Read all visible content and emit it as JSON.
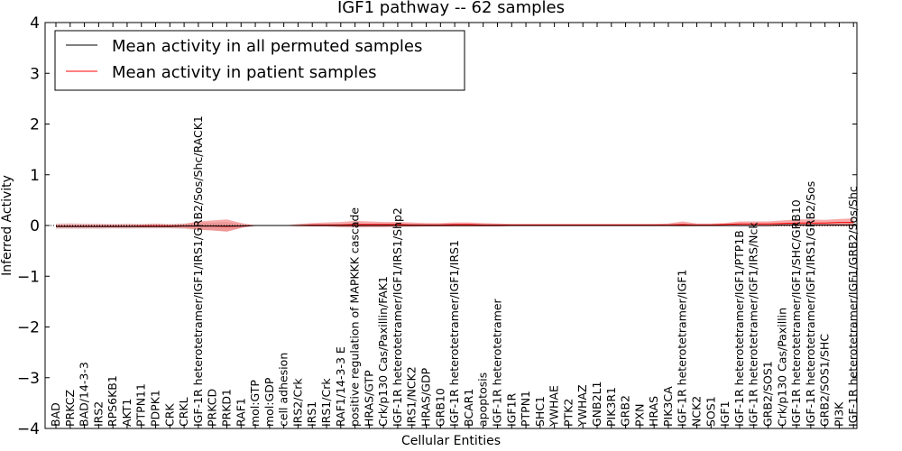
{
  "chart_data": {
    "type": "line",
    "title": "IGF1 pathway -- 62 samples",
    "xlabel": "Cellular Entities",
    "ylabel": "Inferred Activity",
    "ylim": [
      -4,
      4
    ],
    "yticks": [
      "−4",
      "−3",
      "−2",
      "−1",
      "0",
      "1",
      "2",
      "3",
      "4"
    ],
    "ytick_values": [
      -4,
      -3,
      -2,
      -1,
      0,
      1,
      2,
      3,
      4
    ],
    "categories": [
      "BAD",
      "PRKCZ",
      "BAD/14-3-3",
      "IRS2",
      "RPS6KB1",
      "AKT1",
      "PTPN11",
      "PDPK1",
      "CRK",
      "CRKL",
      "IGF-1R heterotetramer/IGF1/IRS1/GRB2/Sos/Shc/RACK1",
      "PRKCD",
      "PRKD1",
      "RAF1",
      "mol:GTP",
      "mol:GDP",
      "cell adhesion",
      "IRS2/Crk",
      "IRS1",
      "IRS1/Crk",
      "RAF1/14-3-3 E",
      "positive regulation of MAPKKK cascade",
      "HRAS/GTP",
      "Crk/p130 Cas/Paxillin/FAK1",
      "IGF-1R heterotetramer/IGF1/IRS1/Shp2",
      "IRS1/NCK2",
      "HRAS/GDP",
      "GRB10",
      "IGF-1R heterotetramer/IGF1/IRS1",
      "BCAR1",
      "apoptosis",
      "IGF-1R heterotetramer",
      "IGF1R",
      "PTPN1",
      "SHC1",
      "YWHAE",
      "PTK2",
      "YWHAZ",
      "GNB2L1",
      "PIK3R1",
      "GRB2",
      "PXN",
      "HRAS",
      "PIK3CA",
      "IGF-1R heterotetramer/IGF1",
      "NCK2",
      "SOS1",
      "IGF1",
      "IGF-1R heterotetramer/IGF1/PTP1B",
      "IGF-1R heterotetramer/IGF1/IRS/Nck",
      "GRB2/SOS1",
      "Crk/p130 Cas/Paxillin",
      "IGF-1R heterotetramer/IGF1/SHC/GRB10",
      "IGF-1R heterotetramer/IGF1/IRS1/GRB2/Sos",
      "GRB2/SOS1/SHC",
      "PI3K",
      "IGF-1R heterotetramer/IGF1/GRB2/Sos/Shc"
    ],
    "series": [
      {
        "name": "Mean activity in all permuted samples",
        "color": "#000000",
        "values": [
          -0.02,
          -0.02,
          -0.02,
          -0.02,
          -0.02,
          -0.02,
          -0.02,
          -0.02,
          -0.02,
          -0.01,
          -0.01,
          -0.01,
          -0.01,
          -0.01,
          0.0,
          0.0,
          0.0,
          0.0,
          0.0,
          0.0,
          0.0,
          0.0,
          0.0,
          0.0,
          0.0,
          0.0,
          0.0,
          0.0,
          0.0,
          0.0,
          0.0,
          0.0,
          0.0,
          0.0,
          0.0,
          0.0,
          0.0,
          0.0,
          0.0,
          0.0,
          0.0,
          0.0,
          0.0,
          0.0,
          0.0,
          0.0,
          0.0,
          0.0,
          0.0,
          0.0,
          0.0,
          0.01,
          0.01,
          0.01,
          0.01,
          0.01,
          0.01
        ],
        "band_upper": [
          0.04,
          0.05,
          0.04,
          0.04,
          0.03,
          0.04,
          0.03,
          0.04,
          0.03,
          0.04,
          0.06,
          0.06,
          0.07,
          0.03,
          0.0,
          0.0,
          0.0,
          0.0,
          0.02,
          0.02,
          0.03,
          0.04,
          0.03,
          0.03,
          0.03,
          0.03,
          0.02,
          0.02,
          0.02,
          0.02,
          0.02,
          0.01,
          0.01,
          0.01,
          0.01,
          0.01,
          0.01,
          0.01,
          0.01,
          0.01,
          0.01,
          0.01,
          0.01,
          0.01,
          0.02,
          0.01,
          0.01,
          0.01,
          0.02,
          0.02,
          0.02,
          0.03,
          0.04,
          0.04,
          0.03,
          0.04,
          0.04
        ],
        "band_lower": [
          -0.07,
          -0.07,
          -0.07,
          -0.07,
          -0.06,
          -0.07,
          -0.06,
          -0.06,
          -0.06,
          -0.07,
          -0.09,
          -0.09,
          -0.12,
          -0.05,
          0.0,
          0.0,
          0.0,
          0.0,
          -0.02,
          -0.02,
          -0.03,
          -0.04,
          -0.03,
          -0.03,
          -0.03,
          -0.03,
          -0.02,
          -0.02,
          -0.02,
          -0.02,
          -0.02,
          -0.01,
          -0.01,
          -0.01,
          -0.01,
          -0.01,
          -0.01,
          -0.01,
          -0.01,
          -0.01,
          -0.01,
          -0.01,
          -0.01,
          -0.01,
          -0.02,
          -0.01,
          -0.01,
          -0.01,
          -0.02,
          -0.02,
          -0.02,
          -0.02,
          -0.02,
          -0.02,
          -0.02,
          -0.02,
          -0.02
        ]
      },
      {
        "name": "Mean activity in patient samples",
        "color": "#ff0000",
        "values": [
          -0.02,
          -0.02,
          -0.02,
          -0.02,
          -0.02,
          -0.02,
          -0.01,
          -0.01,
          -0.01,
          -0.01,
          -0.01,
          -0.01,
          -0.02,
          -0.01,
          0.0,
          0.0,
          0.0,
          0.0,
          0.01,
          0.01,
          0.01,
          0.02,
          0.02,
          0.02,
          0.02,
          0.01,
          0.01,
          0.01,
          0.02,
          0.02,
          0.01,
          0.01,
          0.01,
          0.01,
          0.01,
          0.01,
          0.01,
          0.01,
          0.01,
          0.01,
          0.01,
          0.01,
          0.01,
          0.01,
          0.02,
          0.01,
          0.01,
          0.02,
          0.03,
          0.03,
          0.03,
          0.04,
          0.05,
          0.05,
          0.05,
          0.06,
          0.06
        ],
        "band_upper": [
          0.02,
          0.02,
          0.02,
          0.02,
          0.02,
          0.02,
          0.02,
          0.03,
          0.02,
          0.03,
          0.08,
          0.1,
          0.12,
          0.05,
          0.0,
          0.0,
          0.0,
          0.03,
          0.05,
          0.06,
          0.07,
          0.09,
          0.08,
          0.07,
          0.07,
          0.06,
          0.05,
          0.05,
          0.06,
          0.06,
          0.05,
          0.04,
          0.03,
          0.03,
          0.03,
          0.03,
          0.03,
          0.03,
          0.03,
          0.03,
          0.03,
          0.03,
          0.03,
          0.04,
          0.08,
          0.04,
          0.04,
          0.05,
          0.08,
          0.08,
          0.08,
          0.1,
          0.12,
          0.12,
          0.11,
          0.13,
          0.14
        ],
        "band_lower": [
          -0.04,
          -0.04,
          -0.04,
          -0.04,
          -0.04,
          -0.04,
          -0.04,
          -0.04,
          -0.04,
          -0.05,
          -0.08,
          -0.1,
          -0.12,
          -0.05,
          0.0,
          0.0,
          0.0,
          -0.02,
          -0.02,
          -0.02,
          -0.03,
          -0.03,
          -0.03,
          -0.03,
          -0.02,
          -0.02,
          -0.02,
          -0.02,
          -0.02,
          -0.02,
          -0.02,
          -0.02,
          -0.01,
          -0.01,
          -0.01,
          -0.01,
          -0.01,
          -0.01,
          -0.01,
          -0.01,
          -0.01,
          -0.01,
          -0.01,
          -0.01,
          -0.01,
          -0.01,
          -0.01,
          -0.01,
          -0.01,
          -0.01,
          -0.01,
          -0.01,
          -0.01,
          -0.01,
          -0.01,
          -0.01,
          -0.01
        ]
      }
    ],
    "legend": {
      "position": "top-left",
      "entries": [
        "Mean activity in all permuted samples",
        "Mean activity in patient samples"
      ]
    },
    "grid": false
  }
}
